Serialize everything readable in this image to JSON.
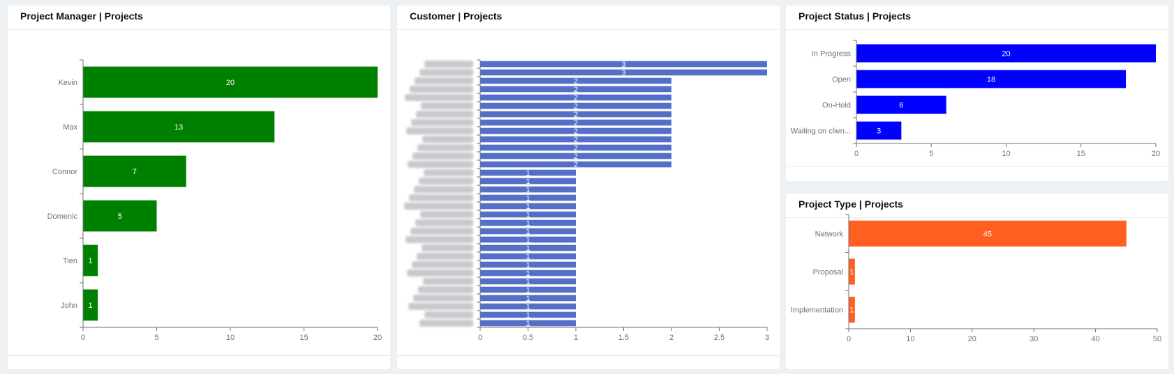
{
  "panels": {
    "pm": {
      "title": "Project Manager | Projects"
    },
    "customer": {
      "title": "Customer | Projects"
    },
    "status": {
      "title": "Project Status | Projects"
    },
    "type": {
      "title": "Project Type | Projects"
    }
  },
  "chart_data": [
    {
      "id": "pm",
      "type": "bar",
      "orientation": "horizontal",
      "title": "Project Manager | Projects",
      "categories": [
        "Kevin",
        "Max",
        "Connor",
        "Domenic",
        "Tien",
        "John"
      ],
      "values": [
        20,
        13,
        7,
        5,
        1,
        1
      ],
      "xlim": [
        0,
        20
      ],
      "xticks": [
        0,
        5,
        10,
        15,
        20
      ],
      "color": "#008000",
      "data_labels": true
    },
    {
      "id": "customer",
      "type": "bar",
      "orientation": "horizontal",
      "title": "Customer | Projects",
      "categories": [
        "",
        "",
        "",
        "",
        "",
        "",
        "",
        "",
        "",
        "",
        "",
        "",
        "",
        "",
        "",
        "",
        "",
        "",
        "",
        "",
        "",
        "",
        "",
        "",
        "",
        "",
        "",
        "",
        "",
        "",
        "",
        ""
      ],
      "values": [
        3,
        3,
        2,
        2,
        2,
        2,
        2,
        2,
        2,
        2,
        2,
        2,
        2,
        1,
        1,
        1,
        1,
        1,
        1,
        1,
        1,
        1,
        1,
        1,
        1,
        1,
        1,
        1,
        1,
        1,
        1,
        1
      ],
      "xlim": [
        0,
        3
      ],
      "xticks": [
        "0",
        "0.5",
        "1",
        "1.5",
        "2",
        "2.5",
        "3"
      ],
      "color": "#5470c6",
      "data_labels": true
    },
    {
      "id": "status",
      "type": "bar",
      "orientation": "horizontal",
      "title": "Project Status | Projects",
      "categories": [
        "In Progress",
        "Open",
        "On-Hold",
        "Waiting on clien..."
      ],
      "values": [
        20,
        18,
        6,
        3
      ],
      "xlim": [
        0,
        20
      ],
      "xticks": [
        0,
        5,
        10,
        15,
        20
      ],
      "color": "#0000ff",
      "data_labels": true
    },
    {
      "id": "type",
      "type": "bar",
      "orientation": "horizontal",
      "title": "Project Type | Projects",
      "categories": [
        "Network",
        "Proposal",
        "Implementation"
      ],
      "values": [
        45,
        1,
        1
      ],
      "xlim": [
        0,
        50
      ],
      "xticks": [
        0,
        10,
        20,
        30,
        40,
        50
      ],
      "color": "#ff5f1f",
      "data_labels": true
    }
  ]
}
